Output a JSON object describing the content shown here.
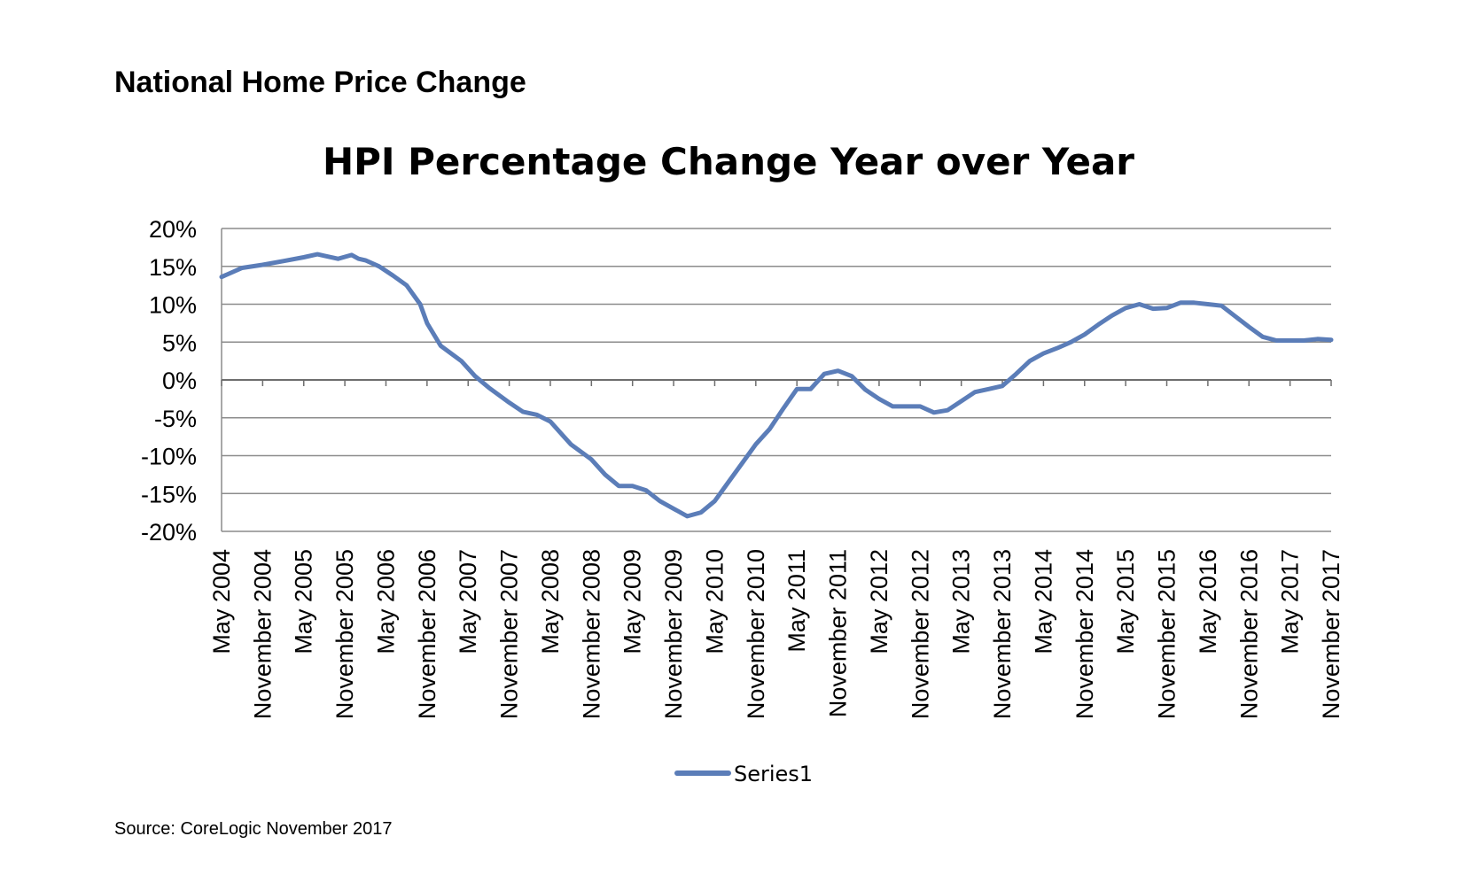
{
  "page": {
    "heading": "National Home Price Change",
    "source": "Source: CoreLogic November 2017"
  },
  "colors": {
    "series": "#5b7db8",
    "grid": "#8c8c8c",
    "axis": "#8c8c8c"
  },
  "chart_data": {
    "type": "line",
    "title": "HPI Percentage Change Year over Year",
    "xlabel": "",
    "ylabel": "",
    "ylim": [
      -20,
      20
    ],
    "yticks": [
      20,
      15,
      10,
      5,
      0,
      -5,
      -10,
      -15,
      -20
    ],
    "ytick_labels": [
      "20%",
      "15%",
      "10%",
      "5%",
      "0%",
      "-5%",
      "-10%",
      "-15%",
      "-20%"
    ],
    "grid": true,
    "legend_position": "bottom",
    "x_tick_labels": [
      "May 2004",
      "November 2004",
      "May 2005",
      "November 2005",
      "May 2006",
      "November 2006",
      "May 2007",
      "November 2007",
      "May 2008",
      "November 2008",
      "May 2009",
      "November 2009",
      "May 2010",
      "November 2010",
      "May 2011",
      "November 2011",
      "May 2012",
      "November 2012",
      "May 2013",
      "November 2013",
      "May 2014",
      "November 2014",
      "May 2015",
      "November 2015",
      "May 2016",
      "November 2016",
      "May 2017",
      "November 2017"
    ],
    "series": [
      {
        "name": "Series1",
        "x_start": "May 2004",
        "x_end": "November 2017",
        "frequency": "monthly",
        "points": [
          [
            "May 2004",
            13.6
          ],
          [
            "Aug 2004",
            14.8
          ],
          [
            "Nov 2004",
            15.2
          ],
          [
            "Feb 2005",
            15.7
          ],
          [
            "May 2005",
            16.2
          ],
          [
            "Jul 2005",
            16.6
          ],
          [
            "Aug 2005",
            16.4
          ],
          [
            "Oct 2005",
            16.0
          ],
          [
            "Dec 2005",
            16.5
          ],
          [
            "Jan 2006",
            16.0
          ],
          [
            "Feb 2006",
            15.8
          ],
          [
            "Apr 2006",
            15.0
          ],
          [
            "Jun 2006",
            13.8
          ],
          [
            "Aug 2006",
            12.5
          ],
          [
            "Oct 2006",
            10.0
          ],
          [
            "Nov 2006",
            7.5
          ],
          [
            "Jan 2007",
            4.5
          ],
          [
            "Apr 2007",
            2.5
          ],
          [
            "Jun 2007",
            0.5
          ],
          [
            "Aug 2007",
            -1.0
          ],
          [
            "Nov 2007",
            -3.0
          ],
          [
            "Jan 2008",
            -4.2
          ],
          [
            "Mar 2008",
            -4.6
          ],
          [
            "May 2008",
            -5.5
          ],
          [
            "Jun 2008",
            -6.5
          ],
          [
            "Aug 2008",
            -8.5
          ],
          [
            "Nov 2008",
            -10.5
          ],
          [
            "Jan 2009",
            -12.5
          ],
          [
            "Mar 2009",
            -14.0
          ],
          [
            "May 2009",
            -14.0
          ],
          [
            "Jul 2009",
            -14.6
          ],
          [
            "Sep 2009",
            -16.0
          ],
          [
            "Nov 2009",
            -17.0
          ],
          [
            "Jan 2010",
            -18.0
          ],
          [
            "Mar 2010",
            -17.5
          ],
          [
            "May 2010",
            -16.0
          ],
          [
            "Jul 2010",
            -13.5
          ],
          [
            "Sep 2010",
            -11.0
          ],
          [
            "Nov 2010",
            -8.5
          ],
          [
            "Jan 2011",
            -6.5
          ],
          [
            "Mar 2011",
            -3.8
          ],
          [
            "May 2011",
            -1.2
          ],
          [
            "Jul 2011",
            -1.2
          ],
          [
            "Sep 2011",
            0.8
          ],
          [
            "Nov 2011",
            1.2
          ],
          [
            "Jan 2012",
            0.5
          ],
          [
            "Mar 2012",
            -1.3
          ],
          [
            "May 2012",
            -2.5
          ],
          [
            "Jul 2012",
            -3.5
          ],
          [
            "Sep 2012",
            -3.5
          ],
          [
            "Nov 2012",
            -3.5
          ],
          [
            "Jan 2013",
            -4.3
          ],
          [
            "Mar 2013",
            -4.0
          ],
          [
            "May 2013",
            -2.8
          ],
          [
            "Jul 2013",
            -1.6
          ],
          [
            "Sep 2013",
            -1.2
          ],
          [
            "Nov 2013",
            -0.8
          ],
          [
            "Jan 2014",
            0.8
          ],
          [
            "Mar 2014",
            2.5
          ],
          [
            "May 2014",
            3.5
          ],
          [
            "Jul 2014",
            4.2
          ],
          [
            "Sep 2014",
            5.0
          ],
          [
            "Nov 2014",
            6.0
          ],
          [
            "Jan 2015",
            7.3
          ],
          [
            "Mar 2015",
            8.5
          ],
          [
            "May 2015",
            9.5
          ],
          [
            "Jul 2015",
            10.0
          ],
          [
            "Sep 2015",
            9.4
          ],
          [
            "Nov 2015",
            9.5
          ],
          [
            "Jan 2016",
            10.2
          ],
          [
            "Mar 2016",
            10.2
          ],
          [
            "May 2016",
            10.0
          ],
          [
            "Jul 2016",
            9.8
          ],
          [
            "Sep 2016",
            8.4
          ],
          [
            "Nov 2016",
            7.0
          ],
          [
            "Jan 2017",
            5.7
          ],
          [
            "Mar 2017",
            5.2
          ],
          [
            "May 2017",
            5.2
          ],
          [
            "Jul 2017",
            5.2
          ],
          [
            "Sep 2017",
            5.4
          ],
          [
            "Nov 2017",
            5.3
          ]
        ],
        "values_note_removed": true
      }
    ]
  }
}
